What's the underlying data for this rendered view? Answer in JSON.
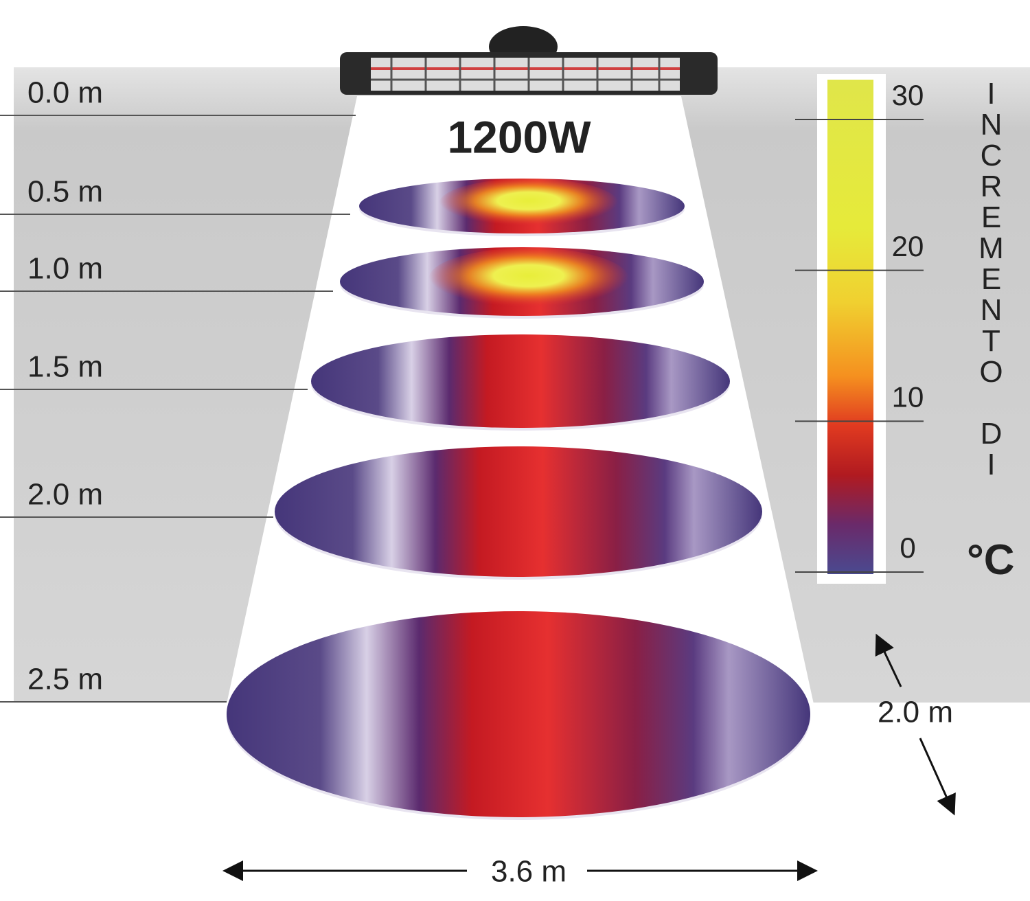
{
  "heater": {
    "power": "1200W"
  },
  "heights": [
    "0.0 m",
    "0.5 m",
    "1.0 m",
    "1.5 m",
    "2.0 m",
    "2.5 m"
  ],
  "scale": {
    "ticks": [
      0,
      10,
      20,
      30
    ],
    "title": "INCREMENTO DI",
    "unit": "°C"
  },
  "dimensions": {
    "depth": "2.0 m",
    "width": "3.6 m"
  }
}
